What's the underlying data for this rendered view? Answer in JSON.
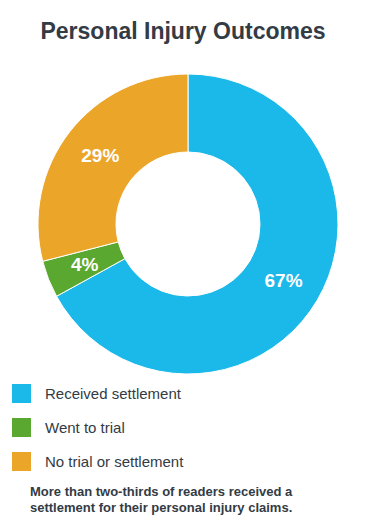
{
  "chart_data": {
    "type": "pie",
    "title": "Personal Injury Outcomes",
    "categories": [
      "Received settlement",
      "Went to trial",
      "No trial or settlement"
    ],
    "values": [
      67,
      4,
      29
    ],
    "value_labels": [
      "67%",
      "4%",
      "29%"
    ],
    "colors": [
      "#1bb9ea",
      "#5aa830",
      "#eba62a"
    ],
    "data_labels": true,
    "legend": "bottom",
    "annotations": [
      "More than two-thirds of readers received a settlement for their personal injury claims."
    ]
  }
}
